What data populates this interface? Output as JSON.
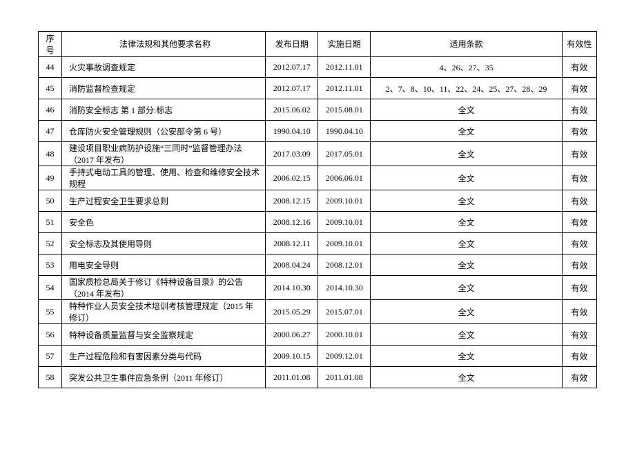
{
  "headers": {
    "seq": "序号",
    "name": "法律法规和其他要求名称",
    "publish_date": "发布日期",
    "effective_date": "实施日期",
    "clause": "适用条款",
    "valid": "有效性"
  },
  "rows": [
    {
      "seq": "44",
      "name": "火灾事故调查规定",
      "publish_date": "2012.07.17",
      "effective_date": "2012.11.01",
      "clause": "4、26、27、35",
      "valid": "有效"
    },
    {
      "seq": "45",
      "name": "消防监督检查规定",
      "publish_date": "2012.07.17",
      "effective_date": "2012.11.01",
      "clause": "2、7、8、10、11、22、24、25、27、28、29",
      "valid": "有效"
    },
    {
      "seq": "46",
      "name": "消防安全标志 第 1 部分:标志",
      "publish_date": "2015.06.02",
      "effective_date": "2015.08.01",
      "clause": "全文",
      "valid": "有效"
    },
    {
      "seq": "47",
      "name": "仓库防火安全管理规则（公安部令第 6 号）",
      "publish_date": "1990.04.10",
      "effective_date": "1990.04.10",
      "clause": "全文",
      "valid": "有效"
    },
    {
      "seq": "48",
      "name": "建设项目职业病防护设施“三同时”监督管理办法（2017 年发布）",
      "publish_date": "2017.03.09",
      "effective_date": "2017.05.01",
      "clause": "全文",
      "valid": "有效"
    },
    {
      "seq": "49",
      "name": "手持式电动工具的管理、使用、检查和维修安全技术规程",
      "publish_date": "2006.02.15",
      "effective_date": "2006.06.01",
      "clause": "全文",
      "valid": "有效"
    },
    {
      "seq": "50",
      "name": "生产过程安全卫生要求总则",
      "publish_date": "2008.12.15",
      "effective_date": "2009.10.01",
      "clause": "全文",
      "valid": "有效"
    },
    {
      "seq": "51",
      "name": "安全色",
      "publish_date": "2008.12.16",
      "effective_date": "2009.10.01",
      "clause": "全文",
      "valid": "有效"
    },
    {
      "seq": "52",
      "name": "安全标志及其使用导则",
      "publish_date": "2008.12.11",
      "effective_date": "2009.10.01",
      "clause": "全文",
      "valid": "有效"
    },
    {
      "seq": "53",
      "name": "用电安全导则",
      "publish_date": "2008.04.24",
      "effective_date": "2008.12.01",
      "clause": "全文",
      "valid": "有效"
    },
    {
      "seq": "54",
      "name": "国家质检总局关于修订《特种设备目录》的公告（2014 年发布）",
      "publish_date": "2014.10.30",
      "effective_date": "2014.10.30",
      "clause": "全文",
      "valid": "有效"
    },
    {
      "seq": "55",
      "name": "特种作业人员安全技术培训考核管理规定（2015 年修订）",
      "publish_date": "2015.05.29",
      "effective_date": "2015.07.01",
      "clause": "全文",
      "valid": "有效"
    },
    {
      "seq": "56",
      "name": "特种设备质量监督与安全监察规定",
      "publish_date": "2000.06.27",
      "effective_date": "2000.10.01",
      "clause": "全文",
      "valid": "有效"
    },
    {
      "seq": "57",
      "name": "生产过程危险和有害因素分类与代码",
      "publish_date": "2009.10.15",
      "effective_date": "2009.12.01",
      "clause": "全文",
      "valid": "有效"
    },
    {
      "seq": "58",
      "name": "突发公共卫生事件应急条例（2011 年修订）",
      "publish_date": "2011.01.08",
      "effective_date": "2011.01.08",
      "clause": "全文",
      "valid": "有效"
    }
  ]
}
